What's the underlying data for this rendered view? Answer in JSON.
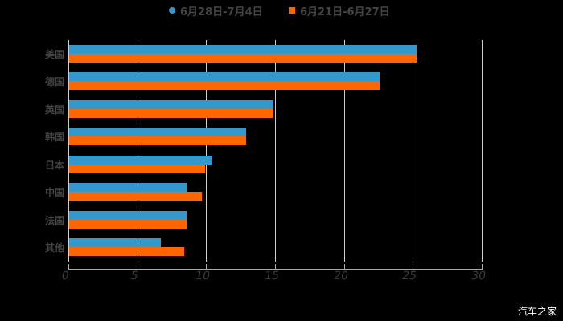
{
  "chart_data": {
    "type": "bar",
    "orientation": "horizontal",
    "title": "",
    "xlabel": "",
    "ylabel": "",
    "categories": [
      "美国",
      "德国",
      "英国",
      "韩国",
      "日本",
      "中国",
      "法国",
      "其他"
    ],
    "series": [
      {
        "name": "6月28日-7月4日",
        "color": "#3399cc",
        "values": [
          25.3,
          22.6,
          14.8,
          12.9,
          10.4,
          8.6,
          8.6,
          6.7
        ]
      },
      {
        "name": "6月21日-6月27日",
        "color": "#ff6600",
        "values": [
          25.3,
          22.6,
          14.8,
          12.9,
          9.9,
          9.7,
          8.6,
          8.4
        ]
      }
    ],
    "xlim": [
      0,
      30
    ],
    "xticks": [
      "0",
      "5",
      "10",
      "15",
      "20",
      "25",
      "30"
    ],
    "grid": true,
    "legend_position": "top"
  },
  "legend": {
    "series1_label": "6月28日-7月4日",
    "series2_label": "6月21日-6月27日"
  },
  "watermark": "汽车之家"
}
